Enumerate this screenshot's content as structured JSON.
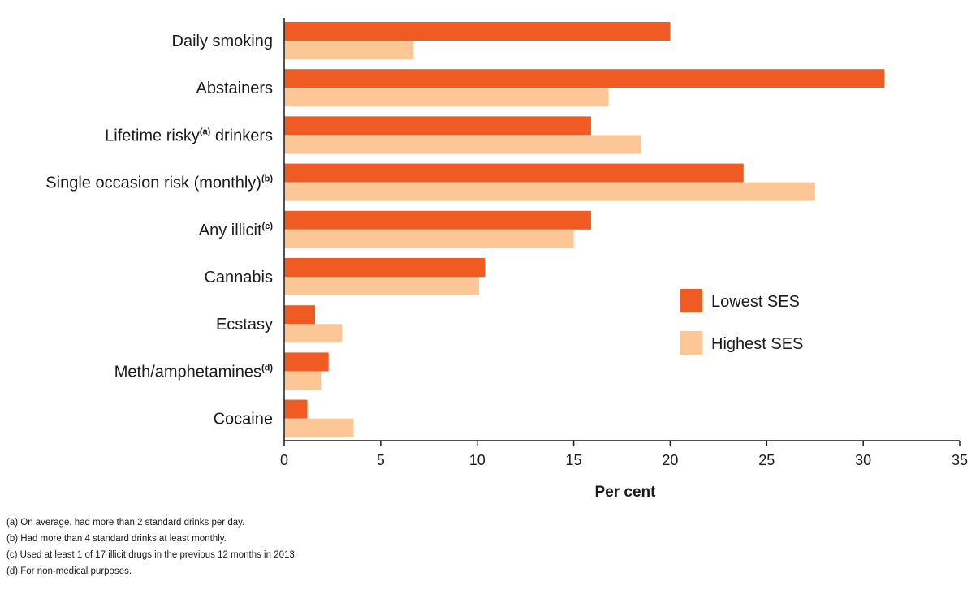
{
  "chart_data": {
    "type": "bar",
    "orientation": "horizontal",
    "categories": [
      {
        "label": "Daily smoking",
        "sup": ""
      },
      {
        "label": "Abstainers",
        "sup": ""
      },
      {
        "label": "Lifetime risky",
        "sup": "(a)",
        "after": " drinkers"
      },
      {
        "label": "Single occasion risk (monthly)",
        "sup": "(b)"
      },
      {
        "label": "Any illicit",
        "sup": "(c)"
      },
      {
        "label": "Cannabis",
        "sup": ""
      },
      {
        "label": "Ecstasy",
        "sup": ""
      },
      {
        "label": "Meth/amphetamines",
        "sup": "(d)"
      },
      {
        "label": "Cocaine",
        "sup": ""
      }
    ],
    "series": [
      {
        "name": "Lowest SES",
        "color": "#f05a23",
        "values": [
          20.0,
          31.1,
          15.9,
          23.8,
          15.9,
          10.4,
          1.6,
          2.3,
          1.2
        ]
      },
      {
        "name": "Highest SES",
        "color": "#fcc697",
        "values": [
          6.7,
          16.8,
          18.5,
          27.5,
          15.0,
          10.1,
          3.0,
          1.9,
          3.6
        ]
      }
    ],
    "xlabel": "Per cent",
    "xlim": [
      0,
      35
    ],
    "xticks": [
      0,
      5,
      10,
      15,
      20,
      25,
      30,
      35
    ],
    "grid": false,
    "legend_position": "right"
  },
  "footnotes": [
    "(a) On average, had more than 2 standard drinks per day.",
    "(b) Had more than 4 standard drinks at least monthly.",
    "(c) Used at least 1 of 17 illicit drugs in the previous 12 months in 2013.",
    "(d) For non-medical purposes."
  ]
}
